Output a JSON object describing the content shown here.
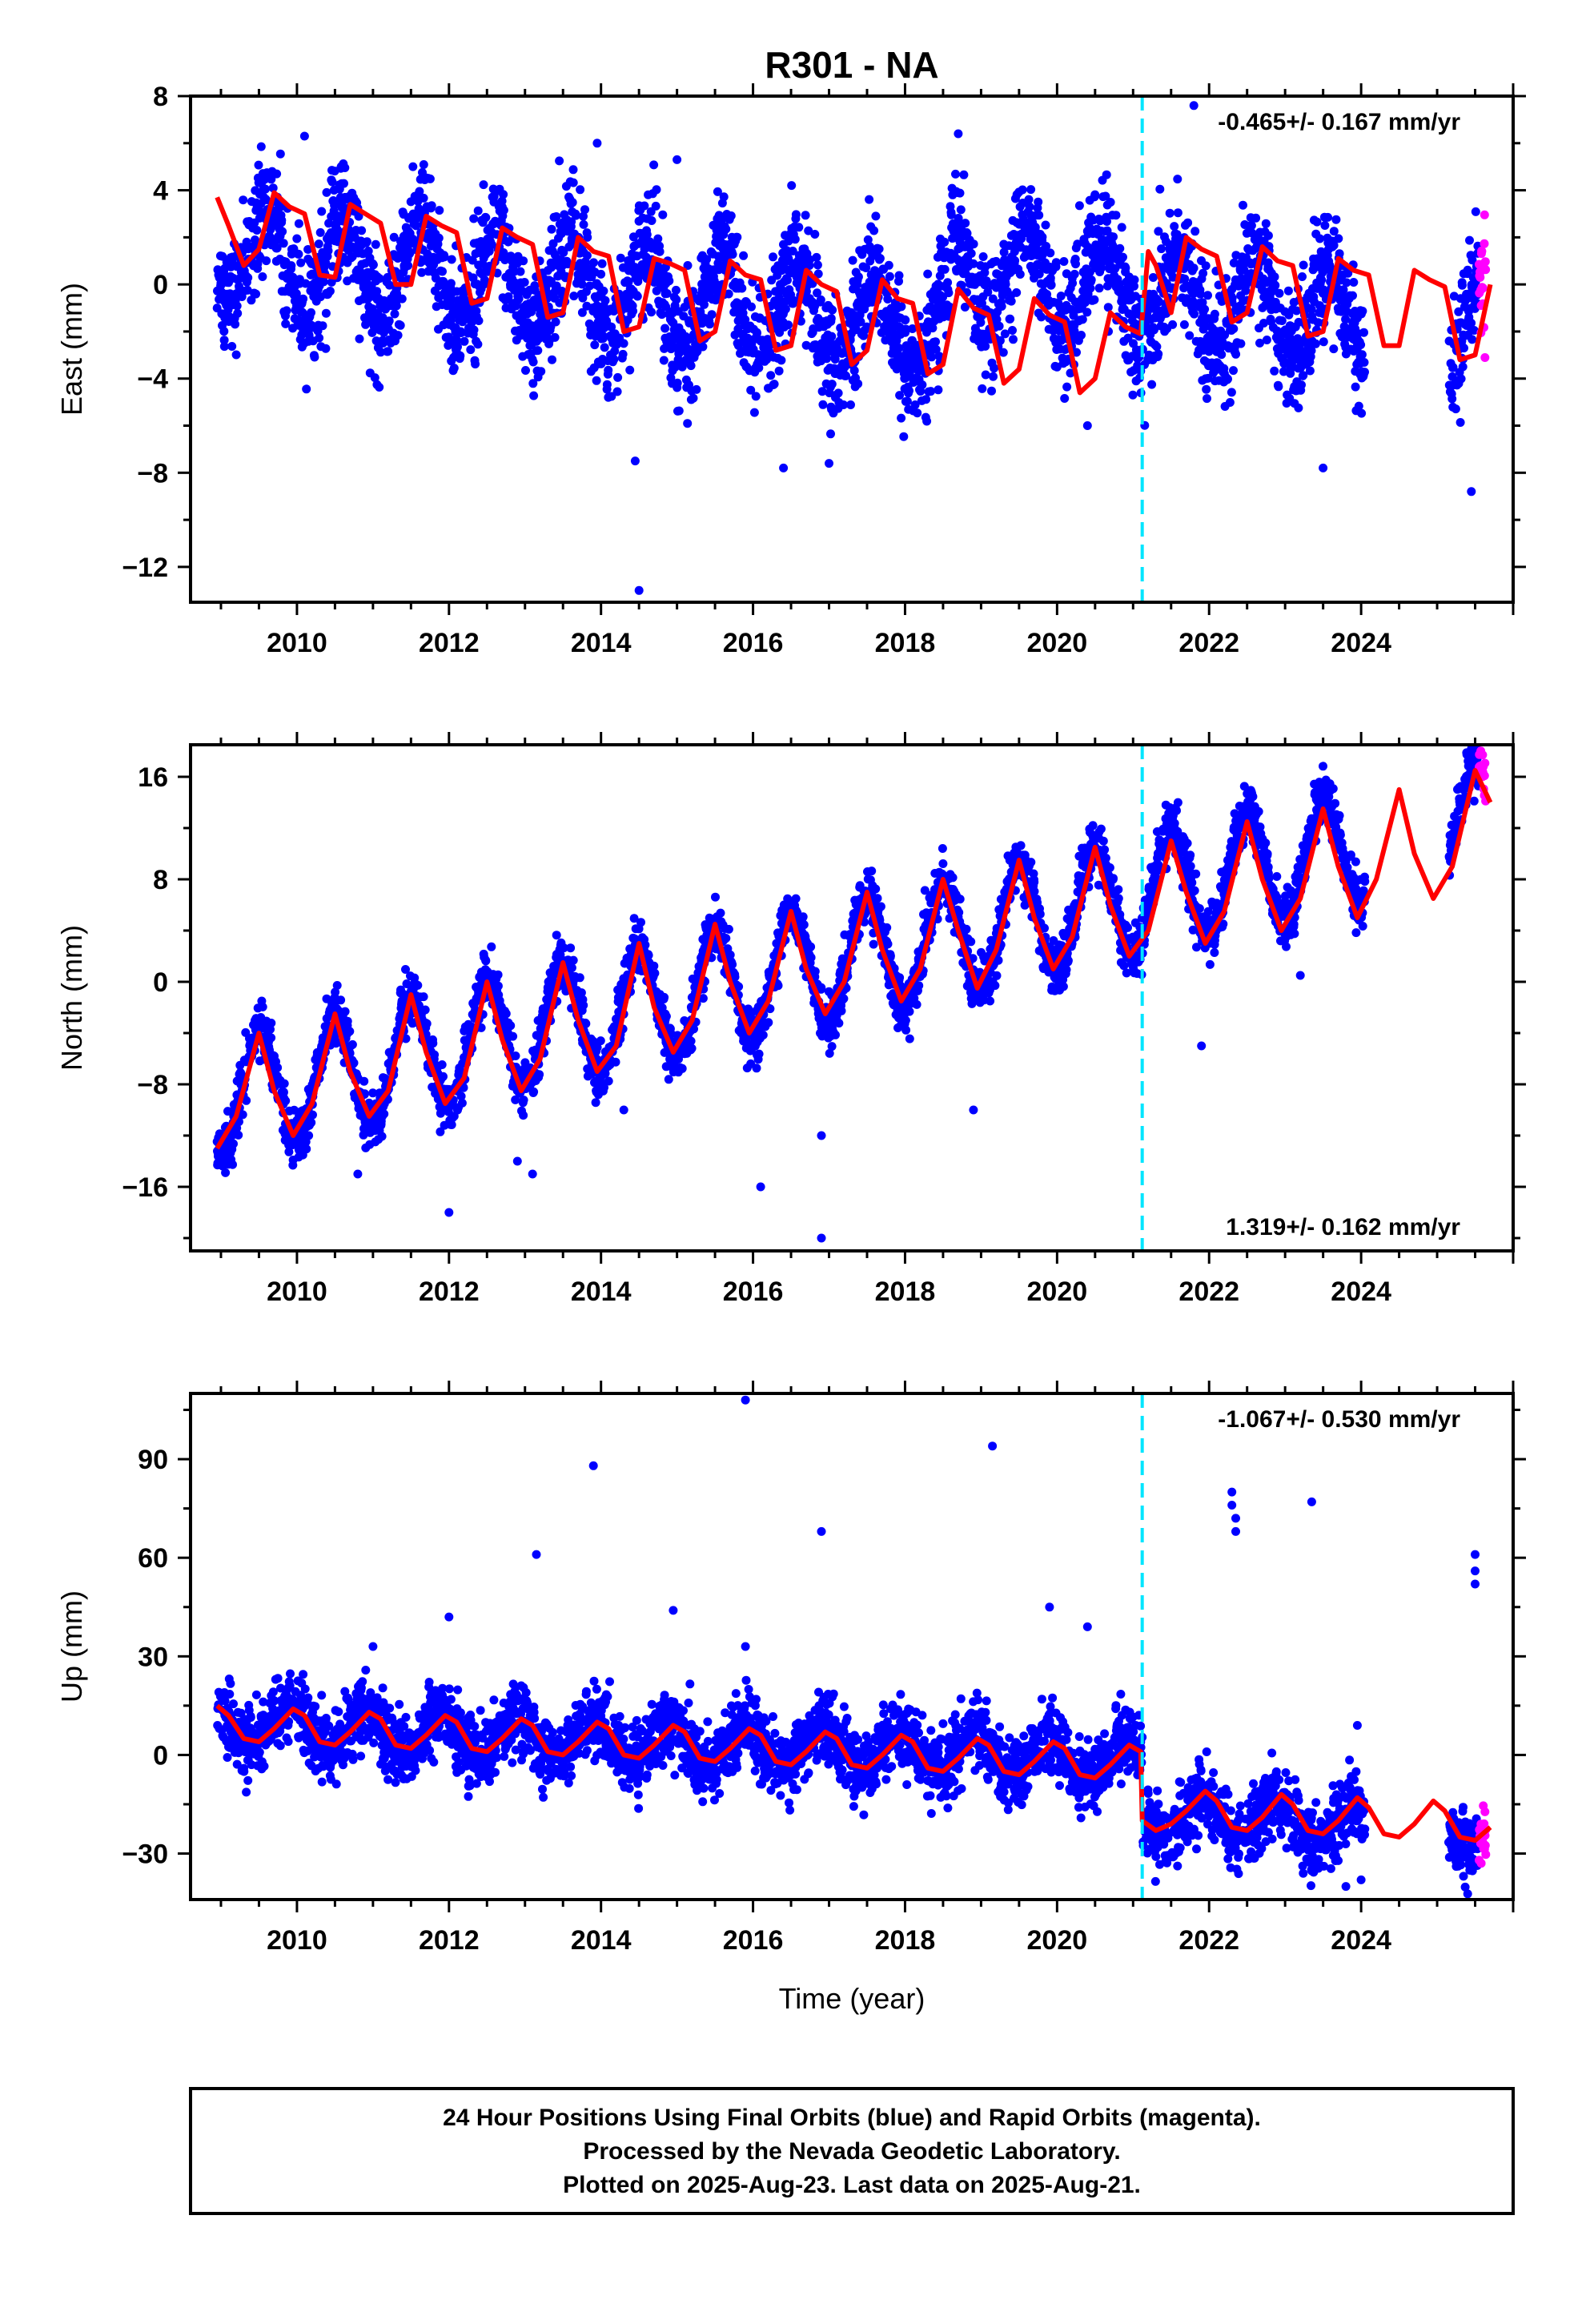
{
  "title": "R301 - NA",
  "xlabel": "Time (year)",
  "colors": {
    "final_orbits": "#0000ff",
    "rapid_orbits": "#ff00ff",
    "model": "#ff0000",
    "event_line": "#00e5ff",
    "frame": "#000000"
  },
  "footer": {
    "line1": "24 Hour Positions Using Final Orbits (blue) and Rapid Orbits (magenta).",
    "line2": "Processed by the Nevada Geodetic Laboratory.",
    "line3": "Plotted on 2025-Aug-23. Last data on 2025-Aug-21."
  },
  "chart_data": [
    {
      "type": "scatter",
      "name": "east",
      "ylabel": "East (mm)",
      "rate_label": "-0.465+/- 0.167 mm/yr",
      "rate_position": "top-right",
      "xlim": [
        2008.6,
        2026.0
      ],
      "ylim": [
        -13.5,
        8.0
      ],
      "xticks": [
        2010,
        2012,
        2014,
        2016,
        2018,
        2020,
        2022,
        2024
      ],
      "xtick_labels": [
        "2010",
        "2012",
        "2014",
        "2016",
        "2018",
        "2020",
        "2022",
        "2024"
      ],
      "yticks": [
        -12,
        -8,
        -4,
        0,
        4,
        8
      ],
      "ytick_labels": [
        "−12",
        "−8",
        "−4",
        "0",
        "4",
        "8"
      ],
      "grid": false,
      "event_x": 2021.12,
      "data_start": 2008.95,
      "data_gap": [
        2024.05,
        2025.15
      ],
      "rapid_start": 2025.55,
      "data_end": 2025.64,
      "trend": {
        "slope": -0.35,
        "offset_before": 1.4,
        "offset_after": 3.8,
        "ref_year": 2009.0
      },
      "seasonal": {
        "amplitude": 2.0,
        "phase_peak": 0.6
      },
      "scatter_sd": 1.2,
      "data_offsets": [
        {
          "from": 2018.6,
          "to": 2021.12,
          "offset": 2.6
        }
      ],
      "outliers": [
        [
          2014.5,
          -13.0
        ],
        [
          2014.45,
          -7.5
        ],
        [
          2013.95,
          6.0
        ],
        [
          2010.1,
          6.3
        ],
        [
          2015.0,
          5.3
        ],
        [
          2021.8,
          7.6
        ],
        [
          2018.7,
          6.4
        ],
        [
          2025.45,
          -8.8
        ],
        [
          2023.5,
          -7.8
        ],
        [
          2016.4,
          -7.8
        ],
        [
          2017.0,
          -7.6
        ],
        [
          2020.4,
          -6.0
        ]
      ],
      "model": {
        "x": [
          2008.95,
          2009.1,
          2009.3,
          2009.5,
          2009.7,
          2009.9,
          2010.1,
          2010.3,
          2010.5,
          2010.7,
          2010.9,
          2011.1,
          2011.3,
          2011.5,
          2011.7,
          2011.9,
          2012.1,
          2012.3,
          2012.5,
          2012.7,
          2012.9,
          2013.1,
          2013.3,
          2013.5,
          2013.7,
          2013.9,
          2014.1,
          2014.3,
          2014.5,
          2014.7,
          2014.9,
          2015.1,
          2015.3,
          2015.5,
          2015.7,
          2015.9,
          2016.1,
          2016.3,
          2016.5,
          2016.7,
          2016.9,
          2017.1,
          2017.3,
          2017.5,
          2017.7,
          2017.9,
          2018.1,
          2018.3,
          2018.5,
          2018.7,
          2018.9,
          2019.1,
          2019.3,
          2019.5,
          2019.7,
          2019.9,
          2020.1,
          2020.3,
          2020.5,
          2020.7,
          2020.9,
          2021.1,
          2021.2,
          2021.3,
          2021.5,
          2021.7,
          2021.9,
          2022.1,
          2022.3,
          2022.5,
          2022.7,
          2022.9,
          2023.1,
          2023.3,
          2023.5,
          2023.7,
          2023.9,
          2024.1,
          2024.3,
          2024.5,
          2024.7,
          2024.9,
          2025.1,
          2025.3,
          2025.5,
          2025.7
        ],
        "y": [
          3.7,
          2.5,
          0.8,
          1.5,
          3.9,
          3.3,
          3.0,
          0.4,
          0.3,
          3.4,
          3.0,
          2.6,
          0.0,
          0.0,
          2.9,
          2.5,
          2.2,
          -0.8,
          -0.6,
          2.4,
          2.0,
          1.7,
          -1.4,
          -1.2,
          2.0,
          1.4,
          1.2,
          -2.0,
          -1.8,
          1.1,
          0.9,
          0.6,
          -2.4,
          -2.0,
          1.0,
          0.4,
          0.2,
          -2.8,
          -2.6,
          0.6,
          0.0,
          -0.3,
          -3.4,
          -2.8,
          0.2,
          -0.6,
          -0.8,
          -3.8,
          -3.4,
          -0.2,
          -1.0,
          -1.3,
          -4.2,
          -3.6,
          -0.6,
          -1.3,
          -1.6,
          -4.6,
          -4.0,
          -1.2,
          -1.8,
          -2.1,
          1.4,
          0.8,
          -1.2,
          2.0,
          1.5,
          1.2,
          -1.6,
          -1.2,
          1.6,
          1.0,
          0.8,
          -2.2,
          -2.0,
          1.1,
          0.6,
          0.4,
          -2.6,
          -2.6,
          0.6,
          0.2,
          -0.1,
          -3.2,
          -3.0,
          0.0
        ]
      }
    },
    {
      "type": "scatter",
      "name": "north",
      "ylabel": "North (mm)",
      "rate_label": "1.319+/- 0.162 mm/yr",
      "rate_position": "bottom-right",
      "xlim": [
        2008.6,
        2026.0
      ],
      "ylim": [
        -21.0,
        18.5
      ],
      "xticks": [
        2010,
        2012,
        2014,
        2016,
        2018,
        2020,
        2022,
        2024
      ],
      "xtick_labels": [
        "2010",
        "2012",
        "2014",
        "2016",
        "2018",
        "2020",
        "2022",
        "2024"
      ],
      "yticks": [
        -16,
        -8,
        0,
        8,
        16
      ],
      "ytick_labels": [
        "−16",
        "−8",
        "0",
        "8",
        "16"
      ],
      "grid": false,
      "event_x": 2021.12,
      "data_start": 2008.95,
      "data_gap": [
        2024.05,
        2025.15
      ],
      "rapid_start": 2025.55,
      "data_end": 2025.64,
      "trend": {
        "slope": 1.32,
        "offset_before": -9.2,
        "offset_after": -9.2,
        "ref_year": 2009.0
      },
      "seasonal": {
        "amplitude": 4.5,
        "phase_peak": 0.5
      },
      "scatter_sd": 1.0,
      "data_offsets": [],
      "outliers": [
        [
          2012.0,
          -18.0
        ],
        [
          2016.9,
          -20.0
        ],
        [
          2016.9,
          -12.0
        ],
        [
          2016.1,
          -16.0
        ],
        [
          2012.9,
          -14.0
        ],
        [
          2013.1,
          -15.0
        ],
        [
          2018.9,
          -10.0
        ],
        [
          2021.9,
          -5.0
        ],
        [
          2023.2,
          0.5
        ],
        [
          2010.8,
          -15.0
        ],
        [
          2014.3,
          -10.0
        ]
      ],
      "model": {
        "x": [
          2008.95,
          2009.2,
          2009.5,
          2009.7,
          2009.95,
          2010.2,
          2010.5,
          2010.7,
          2010.95,
          2011.2,
          2011.5,
          2011.7,
          2011.95,
          2012.2,
          2012.5,
          2012.7,
          2012.95,
          2013.2,
          2013.5,
          2013.7,
          2013.95,
          2014.2,
          2014.5,
          2014.7,
          2014.95,
          2015.2,
          2015.5,
          2015.7,
          2015.95,
          2016.2,
          2016.5,
          2016.7,
          2016.95,
          2017.2,
          2017.5,
          2017.7,
          2017.95,
          2018.2,
          2018.5,
          2018.7,
          2018.95,
          2019.2,
          2019.5,
          2019.7,
          2019.95,
          2020.2,
          2020.5,
          2020.7,
          2020.95,
          2021.2,
          2021.5,
          2021.7,
          2021.95,
          2022.2,
          2022.5,
          2022.7,
          2022.95,
          2023.2,
          2023.5,
          2023.7,
          2023.95,
          2024.2,
          2024.5,
          2024.7,
          2024.95,
          2025.2,
          2025.5,
          2025.7
        ],
        "y": [
          -13.0,
          -10.5,
          -4.0,
          -8.5,
          -12.0,
          -9.5,
          -2.5,
          -7.0,
          -10.5,
          -8.5,
          -1.0,
          -5.5,
          -9.5,
          -7.5,
          0.0,
          -4.5,
          -8.5,
          -6.0,
          1.5,
          -3.0,
          -7.0,
          -5.0,
          3.0,
          -2.0,
          -5.5,
          -3.0,
          4.5,
          0.0,
          -4.0,
          -1.5,
          5.5,
          1.0,
          -2.5,
          0.0,
          7.0,
          2.5,
          -1.5,
          1.0,
          8.0,
          4.0,
          -0.5,
          2.5,
          9.5,
          5.0,
          1.0,
          3.5,
          10.5,
          6.0,
          2.0,
          4.0,
          11.0,
          7.0,
          3.0,
          5.5,
          12.5,
          8.0,
          4.0,
          6.5,
          13.5,
          9.0,
          5.0,
          8.0,
          15.0,
          10.0,
          6.5,
          9.0,
          16.5,
          14.0
        ]
      }
    },
    {
      "type": "scatter",
      "name": "up",
      "ylabel": "Up (mm)",
      "rate_label": "-1.067+/- 0.530 mm/yr",
      "rate_position": "top-right",
      "xlim": [
        2008.6,
        2026.0
      ],
      "ylim": [
        -44.0,
        110.0
      ],
      "xticks": [
        2010,
        2012,
        2014,
        2016,
        2018,
        2020,
        2022,
        2024
      ],
      "xtick_labels": [
        "2010",
        "2012",
        "2014",
        "2016",
        "2018",
        "2020",
        "2022",
        "2024"
      ],
      "yticks": [
        -30,
        0,
        30,
        60,
        90
      ],
      "ytick_labels": [
        "−30",
        "0",
        "30",
        "60",
        "90"
      ],
      "grid": false,
      "event_x": 2021.12,
      "data_start": 2008.95,
      "data_gap": [
        2024.05,
        2025.15
      ],
      "rapid_start": 2025.55,
      "data_end": 2025.64,
      "trend": {
        "slope": -0.9,
        "offset_before": 9.0,
        "offset_after": -8.0,
        "ref_year": 2009.0
      },
      "seasonal": {
        "amplitude": 6.0,
        "phase_peak": 0.9
      },
      "scatter_sd": 5.0,
      "data_offsets": [],
      "outliers": [
        [
          2015.9,
          108.0
        ],
        [
          2019.15,
          94.0
        ],
        [
          2013.9,
          88.0
        ],
        [
          2013.15,
          61.0
        ],
        [
          2016.9,
          68.0
        ],
        [
          2022.3,
          80.0
        ],
        [
          2022.3,
          76.0
        ],
        [
          2022.35,
          72.0
        ],
        [
          2022.35,
          68.0
        ],
        [
          2023.35,
          77.0
        ],
        [
          2025.5,
          61.0
        ],
        [
          2025.5,
          56.0
        ],
        [
          2025.5,
          52.0
        ],
        [
          2014.95,
          44.0
        ],
        [
          2019.9,
          45.0
        ],
        [
          2012.0,
          42.0
        ],
        [
          2020.4,
          39.0
        ],
        [
          2015.9,
          33.0
        ],
        [
          2011.0,
          33.0
        ],
        [
          2023.95,
          9.0
        ],
        [
          2023.8,
          -40.0
        ],
        [
          2024.0,
          -38.0
        ]
      ],
      "model": {
        "x": [
          2008.95,
          2009.1,
          2009.3,
          2009.5,
          2009.7,
          2009.95,
          2010.1,
          2010.3,
          2010.5,
          2010.7,
          2010.95,
          2011.1,
          2011.3,
          2011.5,
          2011.7,
          2011.95,
          2012.1,
          2012.3,
          2012.5,
          2012.7,
          2012.95,
          2013.1,
          2013.3,
          2013.5,
          2013.7,
          2013.95,
          2014.1,
          2014.3,
          2014.5,
          2014.7,
          2014.95,
          2015.1,
          2015.3,
          2015.5,
          2015.7,
          2015.95,
          2016.1,
          2016.3,
          2016.5,
          2016.7,
          2016.95,
          2017.1,
          2017.3,
          2017.5,
          2017.7,
          2017.95,
          2018.1,
          2018.3,
          2018.5,
          2018.7,
          2018.95,
          2019.1,
          2019.3,
          2019.5,
          2019.7,
          2019.95,
          2020.1,
          2020.3,
          2020.5,
          2020.7,
          2020.95,
          2021.1,
          2021.12,
          2021.3,
          2021.5,
          2021.7,
          2021.95,
          2022.1,
          2022.3,
          2022.5,
          2022.7,
          2022.95,
          2023.1,
          2023.3,
          2023.5,
          2023.7,
          2023.95,
          2024.1,
          2024.3,
          2024.5,
          2024.7,
          2024.95,
          2025.1,
          2025.3,
          2025.5,
          2025.7
        ],
        "y": [
          15.0,
          12.0,
          5.0,
          4.0,
          8.0,
          14.0,
          12.0,
          4.0,
          3.0,
          7.0,
          13.0,
          11.0,
          3.0,
          2.0,
          6.0,
          12.0,
          10.0,
          2.0,
          1.0,
          5.0,
          11.0,
          9.0,
          1.0,
          0.0,
          4.0,
          10.0,
          8.0,
          0.0,
          -1.0,
          3.0,
          9.0,
          7.0,
          -1.0,
          -2.0,
          2.0,
          8.0,
          6.0,
          -2.0,
          -3.0,
          1.0,
          7.0,
          5.0,
          -3.0,
          -4.0,
          0.0,
          6.0,
          4.0,
          -4.0,
          -5.0,
          -1.0,
          5.0,
          3.0,
          -5.0,
          -6.0,
          -2.0,
          4.0,
          2.0,
          -6.0,
          -7.0,
          -3.0,
          3.0,
          1.0,
          -20.0,
          -23.0,
          -21.0,
          -17.0,
          -11.0,
          -14.0,
          -22.0,
          -23.0,
          -19.0,
          -12.0,
          -15.0,
          -23.0,
          -24.0,
          -20.0,
          -13.0,
          -16.0,
          -24.0,
          -25.0,
          -21.0,
          -14.0,
          -17.0,
          -25.0,
          -26.0,
          -22.0
        ]
      }
    }
  ]
}
